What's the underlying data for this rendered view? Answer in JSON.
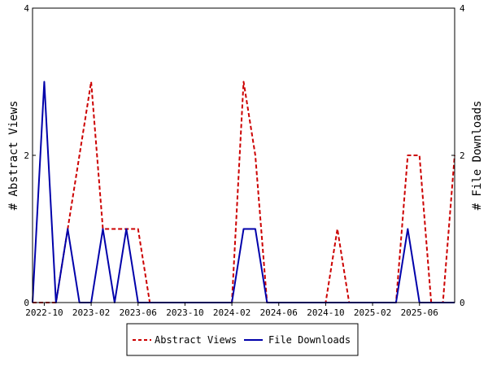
{
  "chart_data": {
    "type": "line",
    "ylabel_left": "# Abstract Views",
    "ylabel_right": "# File Downloads",
    "x_tick_labels": [
      "2022-10",
      "2023-02",
      "2023-06",
      "2023-10",
      "2024-02",
      "2024-06",
      "2024-10",
      "2025-02",
      "2025-06"
    ],
    "y_left_ticks": [
      "0",
      "2",
      "4"
    ],
    "y_right_ticks": [
      "0",
      "2",
      "4"
    ],
    "ylim": [
      0,
      4
    ],
    "xlim": [
      "2022-09",
      "2025-09"
    ],
    "x": [
      "2022-09",
      "2022-10",
      "2022-11",
      "2022-12",
      "2023-01",
      "2023-02",
      "2023-03",
      "2023-04",
      "2023-05",
      "2023-06",
      "2023-07",
      "2023-08",
      "2023-09",
      "2023-10",
      "2023-11",
      "2023-12",
      "2024-01",
      "2024-02",
      "2024-03",
      "2024-04",
      "2024-05",
      "2024-06",
      "2024-07",
      "2024-08",
      "2024-09",
      "2024-10",
      "2024-11",
      "2024-12",
      "2025-01",
      "2025-02",
      "2025-03",
      "2025-04",
      "2025-05",
      "2025-06",
      "2025-07",
      "2025-08",
      "2025-09"
    ],
    "series": [
      {
        "name": "Abstract Views",
        "axis": "left",
        "color": "#cc0000",
        "dash": "dashed",
        "values": [
          0,
          0,
          0,
          1,
          2,
          3,
          1,
          1,
          1,
          1,
          0,
          0,
          0,
          0,
          0,
          0,
          0,
          0,
          3,
          2,
          0,
          0,
          0,
          0,
          0,
          0,
          1,
          0,
          0,
          0,
          0,
          0,
          2,
          2,
          0,
          0,
          2
        ]
      },
      {
        "name": "File Downloads",
        "axis": "right",
        "color": "#0000aa",
        "dash": "solid",
        "values": [
          0,
          3,
          0,
          1,
          0,
          0,
          1,
          0,
          1,
          0,
          0,
          0,
          0,
          0,
          0,
          0,
          0,
          0,
          1,
          1,
          0,
          0,
          0,
          0,
          0,
          0,
          0,
          0,
          0,
          0,
          0,
          0,
          1,
          0,
          0,
          0,
          0
        ]
      }
    ],
    "legend": {
      "placement": "bottom-center",
      "items": [
        {
          "label": "Abstract Views",
          "color": "#cc0000",
          "dash": "dashed"
        },
        {
          "label": "File Downloads",
          "color": "#0000aa",
          "dash": "solid"
        }
      ]
    },
    "grid": false
  }
}
